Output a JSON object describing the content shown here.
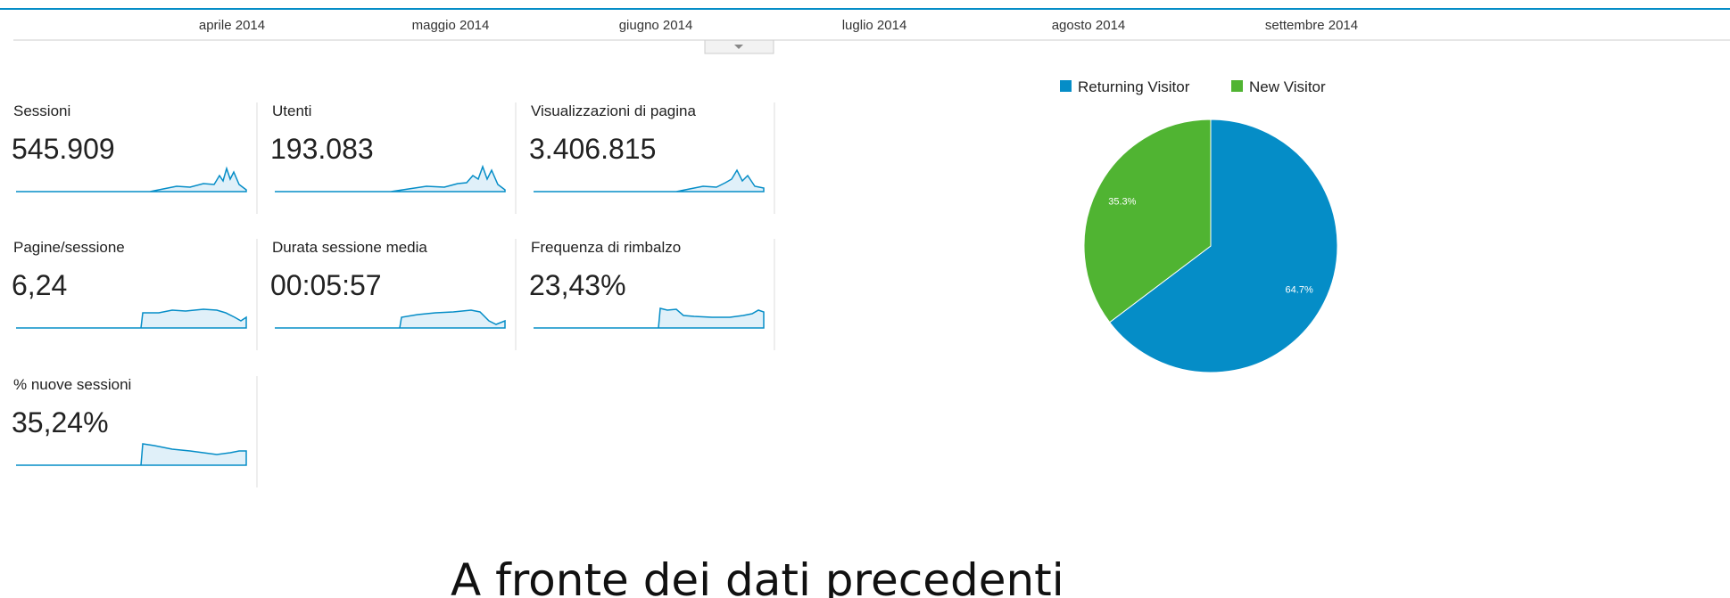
{
  "timeline": {
    "months": [
      "aprile 2014",
      "maggio 2014",
      "giugno 2014",
      "luglio 2014",
      "agosto 2014",
      "settembre 2014"
    ]
  },
  "metrics": [
    {
      "label": "Sessioni",
      "value": "545.909"
    },
    {
      "label": "Utenti",
      "value": "193.083"
    },
    {
      "label": "Visualizzazioni di pagina",
      "value": "3.406.815"
    },
    {
      "label": "Pagine/sessione",
      "value": "6,24"
    },
    {
      "label": "Durata sessione media",
      "value": "00:05:57"
    },
    {
      "label": "Frequenza di rimbalzo",
      "value": "23,43%"
    },
    {
      "label": "% nuove sessioni",
      "value": "35,24%"
    }
  ],
  "chart_data": {
    "type": "pie",
    "categories": [
      "Returning Visitor",
      "New Visitor"
    ],
    "values": [
      64.7,
      35.3
    ],
    "value_labels": [
      "64.7%",
      "35.3%"
    ],
    "colors": [
      "#058dc7",
      "#50b432"
    ]
  },
  "caption": "A fronte dei dati precedenti"
}
